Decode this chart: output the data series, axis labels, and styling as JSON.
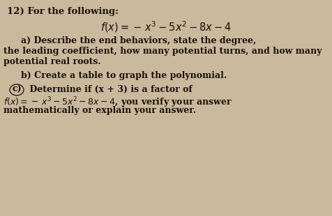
{
  "background_color": "#cbb99d",
  "number": "12)",
  "line0": "For the following:",
  "formula_main": "$f(x) =-\\, x^3 - 5x^2 - 8x - 4$",
  "part_a_label": "a)",
  "part_a_line1": " Describe the end behaviors, state the degree,",
  "part_a_line2": "the leading coefficient, how many potential turns, and how many",
  "part_a_line3": "potential real roots.",
  "part_b_label": "b)",
  "part_b_line1": " Create a table to graph the polynomial.",
  "part_c_label": "c)",
  "part_c_line1": " Determine if (x + 3) is a factor of",
  "part_c_line2": "$f(x) =-\\, x^3 - 5x^2 - 8x - 4$, you verify your answer",
  "part_c_line3": "mathematically or explain your answer.",
  "font_size_header": 9.5,
  "font_size_formula": 10.5,
  "font_size_text": 9.0,
  "text_color": "#1a0e06"
}
